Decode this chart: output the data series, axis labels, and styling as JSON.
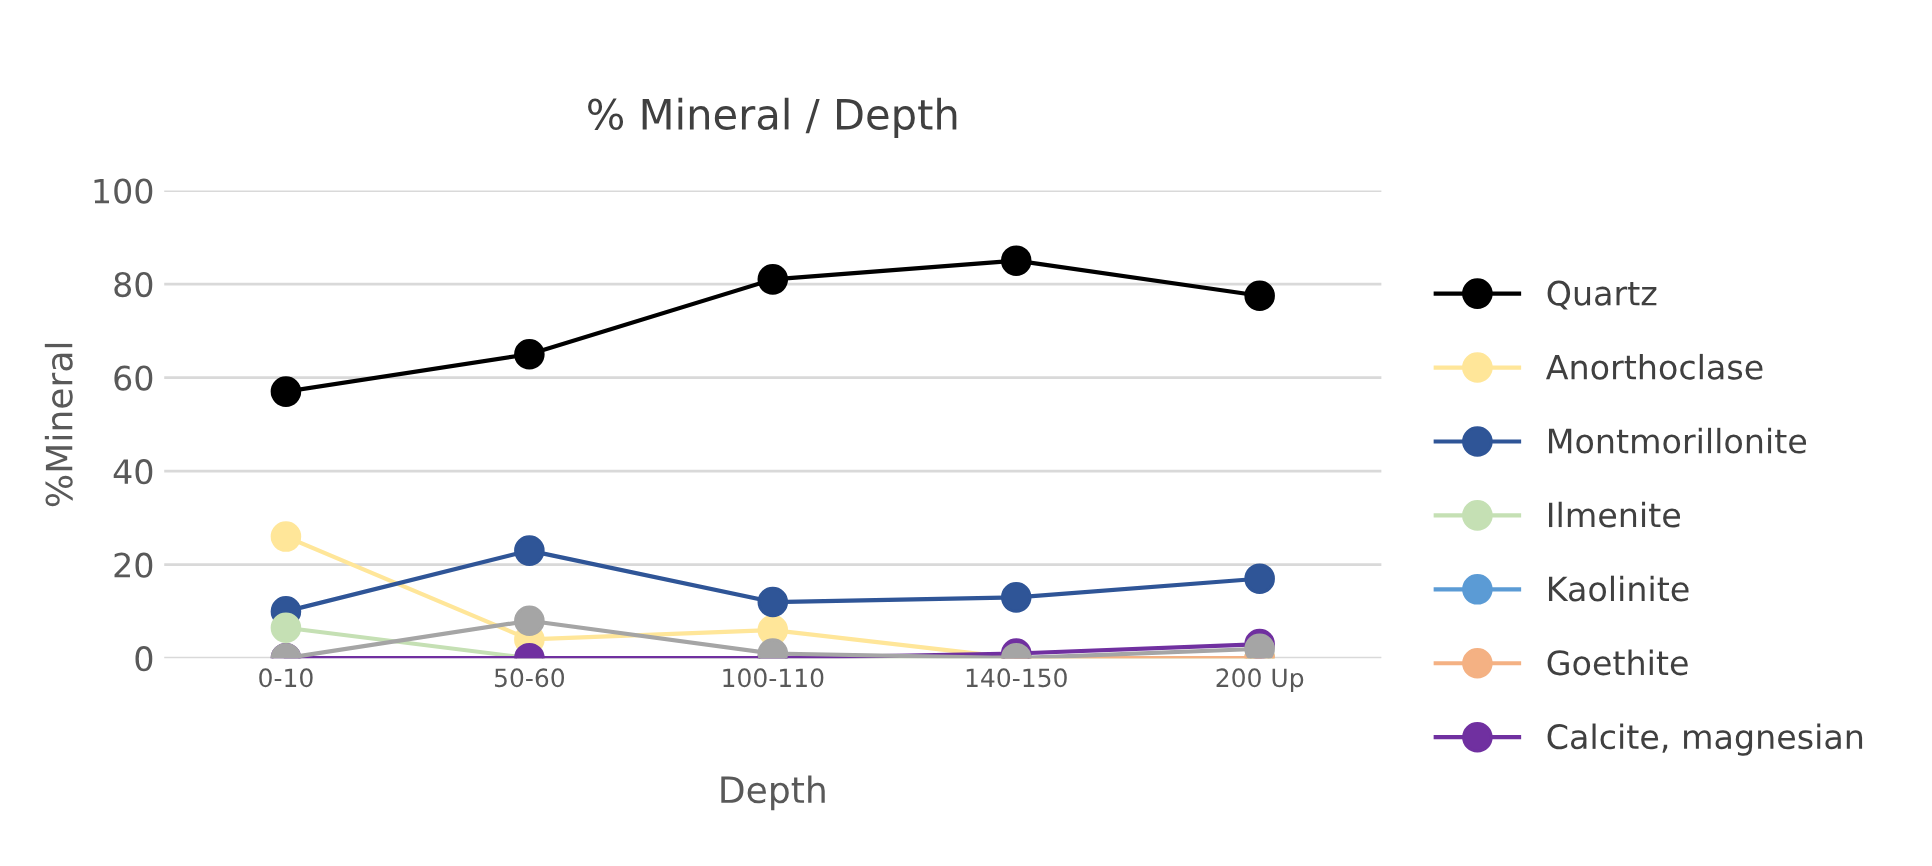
{
  "chart_data": {
    "type": "line",
    "title": "% Mineral / Depth",
    "xlabel": "Depth",
    "ylabel": "%Mineral",
    "categories": [
      "0-10",
      "50-60",
      "100-110",
      "140-150",
      "200 Up"
    ],
    "ylim": [
      0,
      100
    ],
    "yticks": [
      0,
      20,
      40,
      60,
      80,
      100
    ],
    "grid": "y",
    "legend": "right",
    "marker": "circle",
    "line_style": "solid",
    "series": [
      {
        "name": "Quartz",
        "color": "#000000",
        "values": [
          57,
          65,
          81,
          85,
          77.5
        ]
      },
      {
        "name": "Anorthoclase",
        "color": "#ffe699",
        "values": [
          26,
          4,
          6,
          0,
          0
        ]
      },
      {
        "name": "Montmorillonite",
        "color": "#2f5597",
        "values": [
          10,
          23,
          12,
          13,
          17
        ]
      },
      {
        "name": "Ilmenite",
        "color": "#c5e0b4",
        "values": [
          6.5,
          0,
          0,
          0,
          0
        ]
      },
      {
        "name": "Kaolinite",
        "color": "#5b9bd5",
        "values": [
          null,
          null,
          null,
          null,
          null
        ]
      },
      {
        "name": "Goethite",
        "color": "#f4b183",
        "values": [
          null,
          null,
          null,
          0,
          0
        ]
      },
      {
        "name": "Calcite, magnesian",
        "color": "#7030a0",
        "values": [
          0,
          0,
          0,
          1,
          3
        ]
      },
      {
        "color": "#a5a5a5",
        "values": [
          0,
          8,
          1,
          0,
          2
        ]
      }
    ]
  }
}
